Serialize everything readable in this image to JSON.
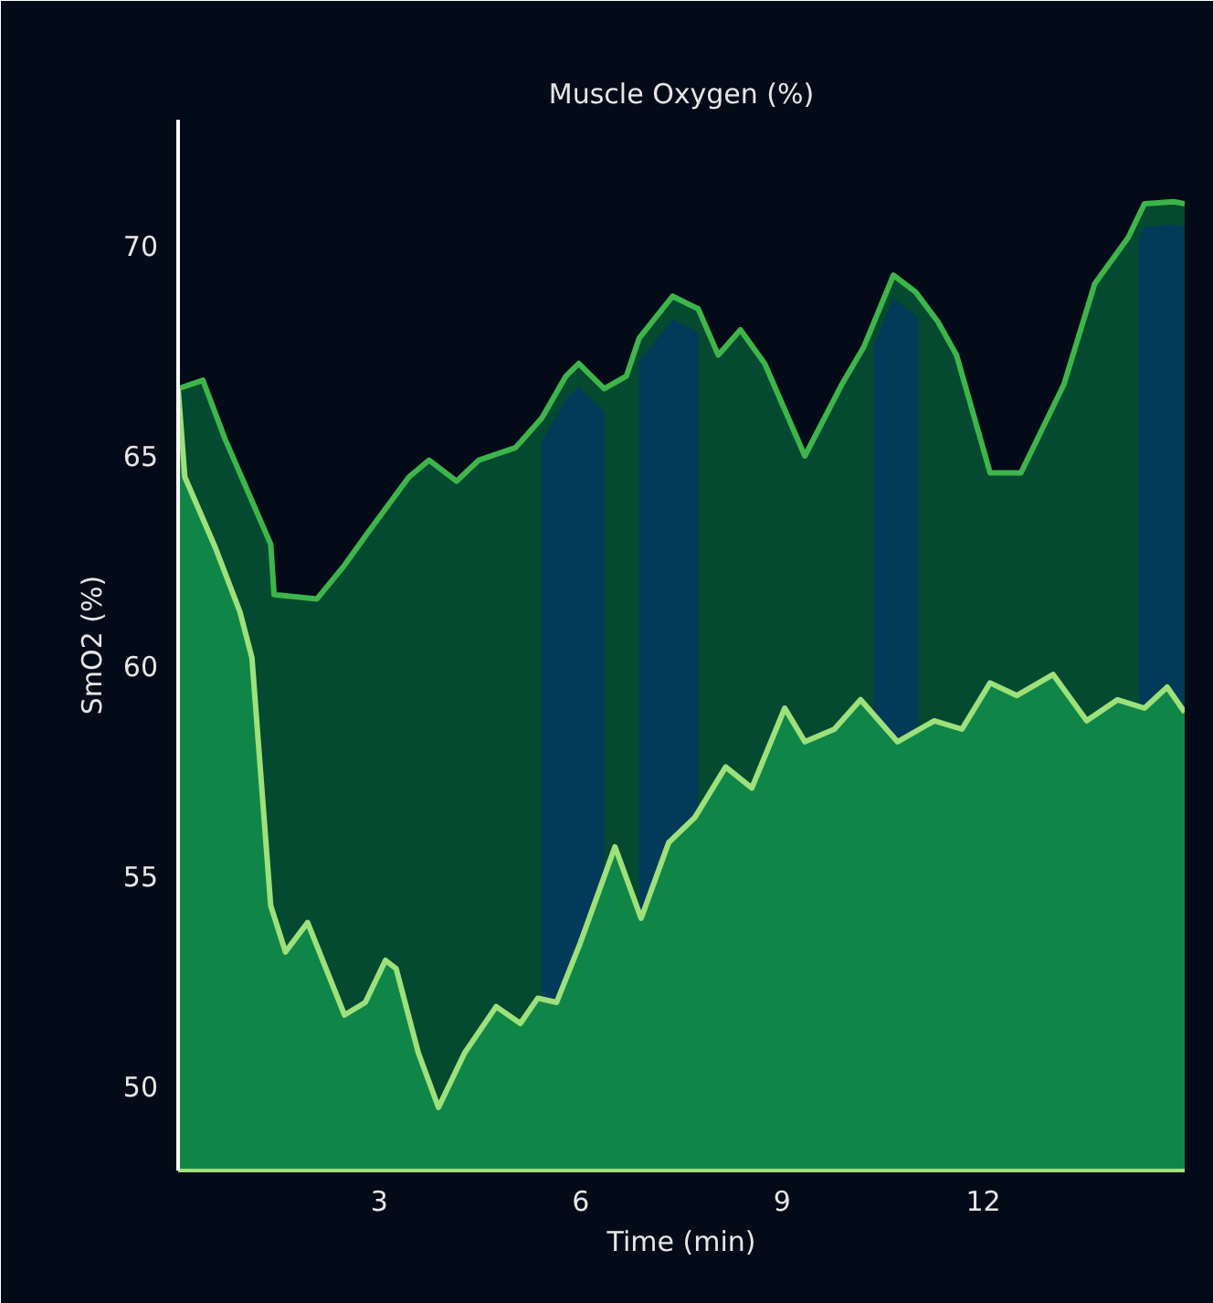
{
  "chart_data": {
    "type": "area",
    "title": "Muscle Oxygen (%)",
    "xlabel": "Time (min)",
    "ylabel": "SmO2 (%)",
    "xlim": [
      0,
      15
    ],
    "ylim": [
      48,
      73
    ],
    "xticks": [
      3,
      6,
      9,
      12
    ],
    "yticks": [
      50,
      55,
      60,
      65,
      70
    ],
    "grid": false,
    "series": [
      {
        "color": "#3db54a",
        "x": [
          0,
          0.37,
          0.7,
          1.0,
          1.38,
          1.43,
          2.07,
          2.48,
          2.84,
          3.44,
          3.74,
          4.15,
          4.48,
          5.03,
          5.42,
          5.78,
          5.97,
          6.35,
          6.68,
          6.87,
          7.37,
          7.75,
          8.05,
          8.38,
          8.74,
          9.34,
          9.89,
          10.22,
          10.66,
          10.99,
          11.32,
          11.6,
          12.1,
          12.56,
          13.2,
          13.66,
          14.16,
          14.4,
          14.84,
          15.0
        ],
        "values": [
          66.6,
          66.8,
          65.4,
          64.3,
          62.9,
          61.7,
          61.6,
          62.4,
          63.2,
          64.5,
          64.9,
          64.4,
          64.9,
          65.2,
          65.9,
          66.9,
          67.2,
          66.6,
          66.9,
          67.8,
          68.8,
          68.5,
          67.4,
          68.0,
          67.2,
          65.0,
          66.7,
          67.6,
          69.3,
          68.9,
          68.2,
          67.4,
          64.6,
          64.6,
          66.7,
          69.1,
          70.2,
          71.0,
          71.05,
          71.0
        ]
      },
      {
        "color": "#9ee07a",
        "x": [
          0,
          0.1,
          0.56,
          0.92,
          1.1,
          1.38,
          1.6,
          1.93,
          2.48,
          2.79,
          3.09,
          3.25,
          3.58,
          3.88,
          4.27,
          4.74,
          5.1,
          5.36,
          5.64,
          5.99,
          6.51,
          6.9,
          7.31,
          7.7,
          8.16,
          8.55,
          9.04,
          9.34,
          9.78,
          10.17,
          10.72,
          11.27,
          11.68,
          12.1,
          12.5,
          13.04,
          13.54,
          14.0,
          14.4,
          14.74,
          15.0
        ],
        "values": [
          66.6,
          64.5,
          62.8,
          61.3,
          60.2,
          54.3,
          53.2,
          53.9,
          51.7,
          52.0,
          53.0,
          52.8,
          50.8,
          49.5,
          50.8,
          51.9,
          51.5,
          52.1,
          52.0,
          53.4,
          55.7,
          54.0,
          55.8,
          56.4,
          57.6,
          57.1,
          59.0,
          58.2,
          58.5,
          59.2,
          58.2,
          58.7,
          58.5,
          59.6,
          59.3,
          59.8,
          58.7,
          59.2,
          59.0,
          59.5,
          58.9
        ]
      }
    ],
    "bands": [
      {
        "axis": "x",
        "from": 5.42,
        "to": 6.35,
        "color": "#023a5a"
      },
      {
        "axis": "x",
        "from": 6.87,
        "to": 7.75,
        "color": "#023a5a"
      },
      {
        "axis": "x",
        "from": 10.37,
        "to": 11.03,
        "color": "#023a5a"
      },
      {
        "axis": "x",
        "from": 14.32,
        "to": 15.0,
        "color": "#023a5a"
      }
    ]
  }
}
